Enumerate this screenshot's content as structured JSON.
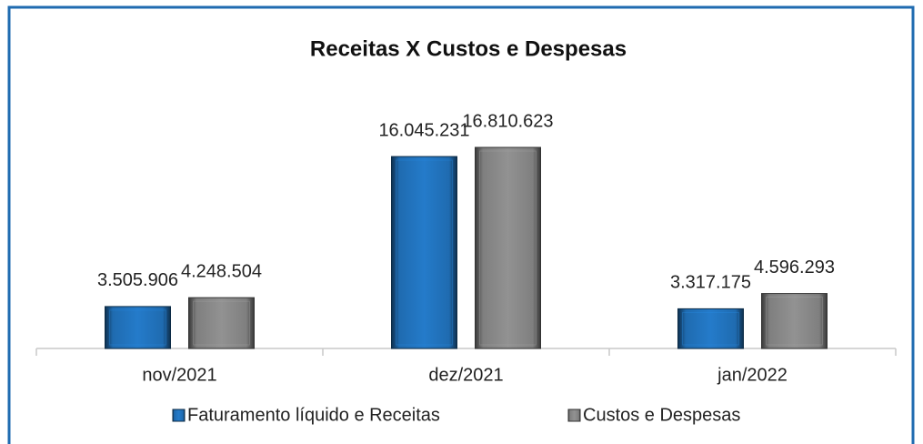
{
  "chart_data": {
    "type": "bar",
    "title": "Receitas X Custos e Despesas",
    "categories": [
      "nov/2021",
      "dez/2021",
      "jan/2022"
    ],
    "series": [
      {
        "name": "Faturamento líquido e Receitas",
        "color": "#1f6bb0",
        "values": [
          3505906,
          16045231,
          3317175
        ],
        "value_labels": [
          "3.505.906",
          "16.045.231",
          "3.317.175"
        ]
      },
      {
        "name": "Custos e Despesas",
        "color": "#7f7f7f",
        "values": [
          4248504,
          16810623,
          4596293
        ],
        "value_labels": [
          "4.248.504",
          "16.810.623",
          "4.596.293"
        ]
      }
    ],
    "legend": "bottom"
  }
}
